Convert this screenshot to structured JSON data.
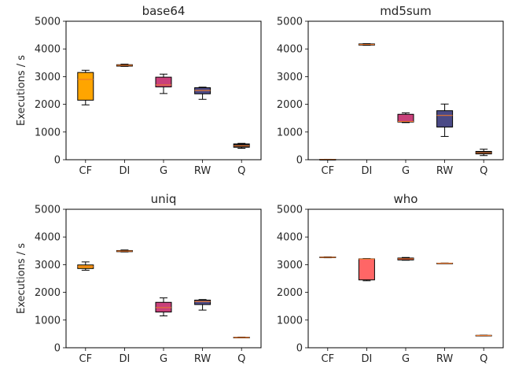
{
  "chart_data": [
    {
      "type": "box",
      "title": "base64",
      "ylabel": "Executions / s",
      "ylim": [
        0,
        5000
      ],
      "yticks": [
        0,
        1000,
        2000,
        3000,
        4000,
        5000
      ],
      "categories": [
        "CF",
        "DI",
        "G",
        "RW",
        "Q"
      ],
      "boxes": [
        {
          "category": "CF",
          "whislo": 1980,
          "q1": 2150,
          "med": 2900,
          "q3": 3150,
          "whishi": 3230,
          "color": "#ffa500"
        },
        {
          "category": "DI",
          "whislo": 3370,
          "q1": 3380,
          "med": 3410,
          "q3": 3430,
          "whishi": 3450,
          "color": "#ffa500"
        },
        {
          "category": "G",
          "whislo": 2390,
          "q1": 2630,
          "med": 2700,
          "q3": 2980,
          "whishi": 3090,
          "color": "#c9407a"
        },
        {
          "category": "RW",
          "whislo": 2180,
          "q1": 2380,
          "med": 2500,
          "q3": 2600,
          "whishi": 2620,
          "color": "#4b4a86"
        },
        {
          "category": "Q",
          "whislo": 410,
          "q1": 450,
          "med": 500,
          "q3": 570,
          "whishi": 590,
          "color": "#1e1e24"
        }
      ]
    },
    {
      "type": "box",
      "title": "md5sum",
      "ylabel": "",
      "ylim": [
        0,
        5000
      ],
      "yticks": [
        0,
        1000,
        2000,
        3000,
        4000,
        5000
      ],
      "categories": [
        "CF",
        "DI",
        "G",
        "RW",
        "Q"
      ],
      "boxes": [
        {
          "category": "CF",
          "whislo": 5,
          "q1": 8,
          "med": 10,
          "q3": 12,
          "whishi": 15,
          "color": "#ffa500"
        },
        {
          "category": "DI",
          "whislo": 4130,
          "q1": 4140,
          "med": 4160,
          "q3": 4180,
          "whishi": 4190,
          "color": "#ff6666"
        },
        {
          "category": "G",
          "whislo": 1340,
          "q1": 1360,
          "med": 1380,
          "q3": 1640,
          "whishi": 1690,
          "color": "#c9407a"
        },
        {
          "category": "RW",
          "whislo": 840,
          "q1": 1180,
          "med": 1600,
          "q3": 1770,
          "whishi": 2010,
          "color": "#4b4a86"
        },
        {
          "category": "Q",
          "whislo": 150,
          "q1": 210,
          "med": 250,
          "q3": 300,
          "whishi": 380,
          "color": "#1e1e24"
        }
      ]
    },
    {
      "type": "box",
      "title": "uniq",
      "ylabel": "Executions / s",
      "ylim": [
        0,
        5000
      ],
      "yticks": [
        0,
        1000,
        2000,
        3000,
        4000,
        5000
      ],
      "categories": [
        "CF",
        "DI",
        "G",
        "RW",
        "Q"
      ],
      "boxes": [
        {
          "category": "CF",
          "whislo": 2800,
          "q1": 2860,
          "med": 2930,
          "q3": 2990,
          "whishi": 3100,
          "color": "#ffa500"
        },
        {
          "category": "DI",
          "whislo": 3460,
          "q1": 3470,
          "med": 3490,
          "q3": 3510,
          "whishi": 3530,
          "color": "#ffa500"
        },
        {
          "category": "G",
          "whislo": 1150,
          "q1": 1290,
          "med": 1450,
          "q3": 1640,
          "whishi": 1800,
          "color": "#c9407a"
        },
        {
          "category": "RW",
          "whislo": 1360,
          "q1": 1560,
          "med": 1670,
          "q3": 1720,
          "whishi": 1740,
          "color": "#4b4a86"
        },
        {
          "category": "Q",
          "whislo": 355,
          "q1": 362,
          "med": 370,
          "q3": 378,
          "whishi": 385,
          "color": "#1e1e24"
        }
      ]
    },
    {
      "type": "box",
      "title": "who",
      "ylabel": "",
      "ylim": [
        0,
        5000
      ],
      "yticks": [
        0,
        1000,
        2000,
        3000,
        4000,
        5000
      ],
      "categories": [
        "CF",
        "DI",
        "G",
        "RW",
        "Q"
      ],
      "boxes": [
        {
          "category": "CF",
          "whislo": 3250,
          "q1": 3255,
          "med": 3265,
          "q3": 3275,
          "whishi": 3280,
          "color": "#ffa500"
        },
        {
          "category": "DI",
          "whislo": 2420,
          "q1": 2450,
          "med": 3200,
          "q3": 3210,
          "whishi": 3220,
          "color": "#ff6666"
        },
        {
          "category": "G",
          "whislo": 3160,
          "q1": 3170,
          "med": 3210,
          "q3": 3240,
          "whishi": 3260,
          "color": "#c9407a"
        },
        {
          "category": "RW",
          "whislo": 3040,
          "q1": 3045,
          "med": 3050,
          "q3": 3055,
          "whishi": 3060,
          "color": "#4b4a86"
        },
        {
          "category": "Q",
          "whislo": 425,
          "q1": 432,
          "med": 440,
          "q3": 448,
          "whishi": 455,
          "color": "#1e1e24"
        }
      ]
    }
  ],
  "style": {
    "median_color": "#e8772e",
    "box_edge_color": "#000000"
  }
}
